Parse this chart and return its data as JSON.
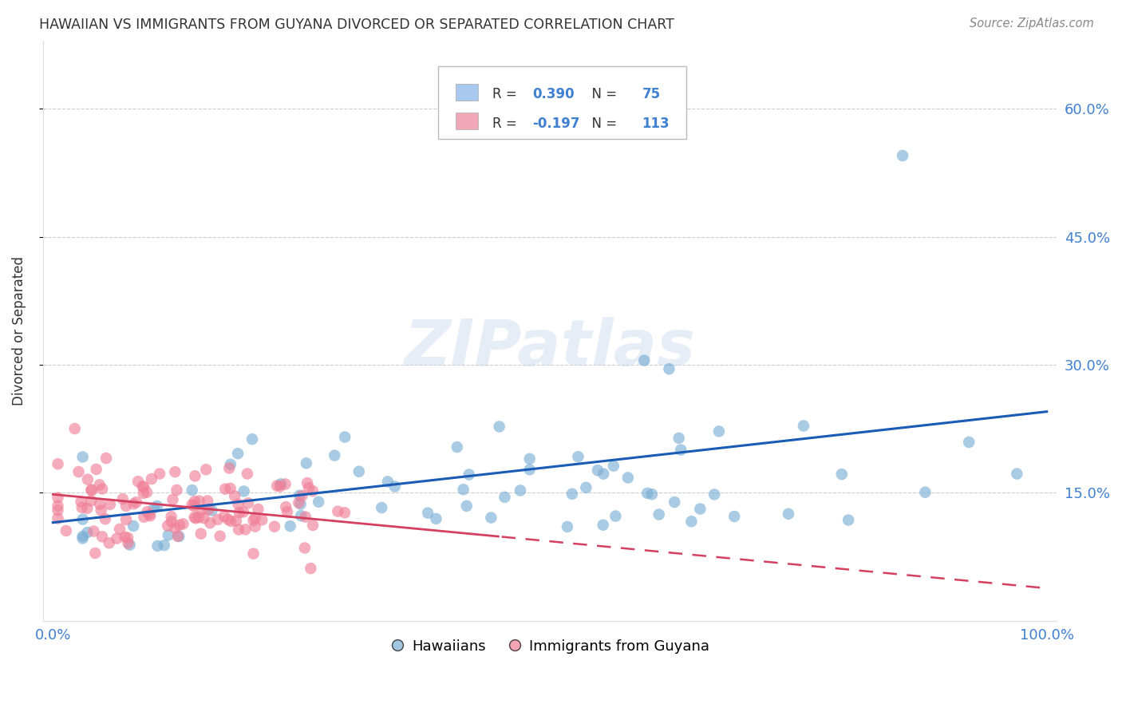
{
  "title": "HAWAIIAN VS IMMIGRANTS FROM GUYANA DIVORCED OR SEPARATED CORRELATION CHART",
  "source": "Source: ZipAtlas.com",
  "ylabel": "Divorced or Separated",
  "watermark": "ZIPatlas",
  "xlim": [
    0.0,
    1.0
  ],
  "ylim": [
    0.0,
    0.68
  ],
  "yticks": [
    0.15,
    0.3,
    0.45,
    0.6
  ],
  "ytick_labels": [
    "15.0%",
    "30.0%",
    "45.0%",
    "60.0%"
  ],
  "xticks": [
    0.0,
    0.2,
    0.4,
    0.6,
    0.8,
    1.0
  ],
  "xtick_labels": [
    "0.0%",
    "",
    "",
    "",
    "",
    "100.0%"
  ],
  "legend_labels_bottom": [
    "Hawaiians",
    "Immigrants from Guyana"
  ],
  "hawaiians_color": "#7bafd4",
  "guyana_color": "#f08098",
  "hawaiians_patch_color": "#a8c8f0",
  "guyana_patch_color": "#f0a8b8",
  "blue_line_color": "#1a5bb5",
  "red_line_color": "#d44060",
  "grid_color": "#cccccc",
  "background_color": "#ffffff",
  "title_color": "#333333",
  "source_color": "#888888",
  "tick_color": "#4080d0",
  "ylabel_color": "#333333",
  "watermark_color": "#c8d8ee",
  "legend_R1": "0.390",
  "legend_N1": "75",
  "legend_R2": "-0.197",
  "legend_N2": "113"
}
